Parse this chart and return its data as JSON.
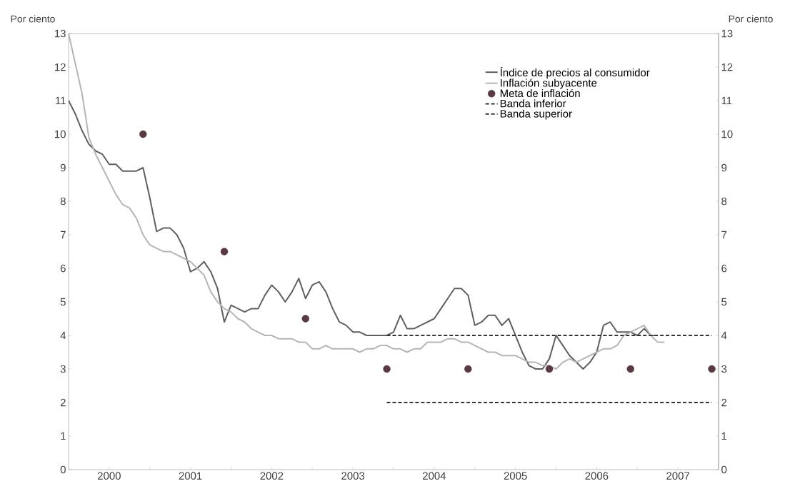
{
  "chart_data": {
    "type": "line",
    "ylabel": "Por ciento",
    "y2label": "Por ciento",
    "xlim": [
      "2000-01",
      "2008-01"
    ],
    "xticks": [
      {
        "value": "2000-07",
        "label": "2000"
      },
      {
        "value": "2001-01",
        "label": null
      },
      {
        "value": "2001-07",
        "label": "2001"
      },
      {
        "value": "2002-01",
        "label": null
      },
      {
        "value": "2002-07",
        "label": "2002"
      },
      {
        "value": "2003-01",
        "label": null
      },
      {
        "value": "2003-07",
        "label": "2003"
      },
      {
        "value": "2004-01",
        "label": null
      },
      {
        "value": "2004-07",
        "label": "2004"
      },
      {
        "value": "2005-01",
        "label": null
      },
      {
        "value": "2005-07",
        "label": "2005"
      },
      {
        "value": "2006-01",
        "label": null
      },
      {
        "value": "2006-07",
        "label": "2006"
      },
      {
        "value": "2007-01",
        "label": null
      },
      {
        "value": "2007-07",
        "label": "2007"
      }
    ],
    "ylim": [
      0,
      13
    ],
    "yticks": [
      0,
      1,
      2,
      3,
      4,
      5,
      6,
      7,
      8,
      9,
      10,
      11,
      12,
      13
    ],
    "y2lim": [
      0,
      13
    ],
    "y2ticks": [
      0,
      1,
      2,
      3,
      4,
      5,
      6,
      7,
      8,
      9,
      10,
      11,
      12,
      13
    ],
    "grid": false,
    "legend": "top right",
    "series": [
      {
        "name": "Índice de precios al consumidor",
        "color": "#5f5f5f",
        "line_style": "solid",
        "marker": "none",
        "x": [
          "2000-01",
          "2000-02",
          "2000-03",
          "2000-04",
          "2000-05",
          "2000-06",
          "2000-07",
          "2000-08",
          "2000-09",
          "2000-10",
          "2000-11",
          "2000-12",
          "2001-01",
          "2001-02",
          "2001-03",
          "2001-04",
          "2001-05",
          "2001-06",
          "2001-07",
          "2001-08",
          "2001-09",
          "2001-10",
          "2001-11",
          "2001-12",
          "2002-01",
          "2002-02",
          "2002-03",
          "2002-04",
          "2002-05",
          "2002-06",
          "2002-07",
          "2002-08",
          "2002-09",
          "2002-10",
          "2002-11",
          "2002-12",
          "2003-01",
          "2003-02",
          "2003-03",
          "2003-04",
          "2003-05",
          "2003-06",
          "2003-07",
          "2003-08",
          "2003-09",
          "2003-10",
          "2003-11",
          "2003-12",
          "2004-01",
          "2004-02",
          "2004-03",
          "2004-04",
          "2004-05",
          "2004-06",
          "2004-07",
          "2004-08",
          "2004-09",
          "2004-10",
          "2004-11",
          "2004-12",
          "2005-01",
          "2005-02",
          "2005-03",
          "2005-04",
          "2005-05",
          "2005-06",
          "2005-07",
          "2005-08",
          "2005-09",
          "2005-10",
          "2005-11",
          "2005-12",
          "2006-01",
          "2006-02",
          "2006-03",
          "2006-04",
          "2006-05",
          "2006-06",
          "2006-07",
          "2006-08",
          "2006-09",
          "2006-10",
          "2006-11",
          "2006-12",
          "2007-01",
          "2007-02",
          "2007-03",
          "2007-04"
        ],
        "values": [
          11.0,
          10.6,
          10.1,
          9.7,
          9.5,
          9.4,
          9.1,
          9.1,
          8.9,
          8.9,
          8.9,
          9.0,
          8.1,
          7.1,
          7.2,
          7.2,
          7.0,
          6.6,
          5.9,
          6.0,
          6.2,
          5.9,
          5.4,
          4.4,
          4.9,
          4.8,
          4.7,
          4.8,
          4.8,
          5.2,
          5.5,
          5.3,
          5.0,
          5.3,
          5.7,
          5.1,
          5.5,
          5.6,
          5.3,
          4.8,
          4.4,
          4.3,
          4.1,
          4.1,
          4.0,
          4.0,
          4.0,
          4.0,
          4.1,
          4.6,
          4.2,
          4.2,
          4.3,
          4.4,
          4.5,
          4.8,
          5.1,
          5.4,
          5.4,
          5.2,
          4.3,
          4.4,
          4.6,
          4.6,
          4.3,
          4.5,
          4.0,
          3.5,
          3.1,
          3.0,
          3.0,
          3.3,
          4.0,
          3.7,
          3.4,
          3.2,
          3.0,
          3.2,
          3.5,
          4.3,
          4.4,
          4.1,
          4.1,
          4.1,
          4.0,
          4.2,
          4.0,
          4.0
        ]
      },
      {
        "name": "Inflación subyacente",
        "color": "#b5b5b5",
        "line_style": "solid",
        "marker": "none",
        "x": [
          "2000-01",
          "2000-02",
          "2000-03",
          "2000-04",
          "2000-05",
          "2000-06",
          "2000-07",
          "2000-08",
          "2000-09",
          "2000-10",
          "2000-11",
          "2000-12",
          "2001-01",
          "2001-02",
          "2001-03",
          "2001-04",
          "2001-05",
          "2001-06",
          "2001-07",
          "2001-08",
          "2001-09",
          "2001-10",
          "2001-11",
          "2001-12",
          "2002-01",
          "2002-02",
          "2002-03",
          "2002-04",
          "2002-05",
          "2002-06",
          "2002-07",
          "2002-08",
          "2002-09",
          "2002-10",
          "2002-11",
          "2002-12",
          "2003-01",
          "2003-02",
          "2003-03",
          "2003-04",
          "2003-05",
          "2003-06",
          "2003-07",
          "2003-08",
          "2003-09",
          "2003-10",
          "2003-11",
          "2003-12",
          "2004-01",
          "2004-02",
          "2004-03",
          "2004-04",
          "2004-05",
          "2004-06",
          "2004-07",
          "2004-08",
          "2004-09",
          "2004-10",
          "2004-11",
          "2004-12",
          "2005-01",
          "2005-02",
          "2005-03",
          "2005-04",
          "2005-05",
          "2005-06",
          "2005-07",
          "2005-08",
          "2005-09",
          "2005-10",
          "2005-11",
          "2005-12",
          "2006-01",
          "2006-02",
          "2006-03",
          "2006-04",
          "2006-05",
          "2006-06",
          "2006-07",
          "2006-08",
          "2006-09",
          "2006-10",
          "2006-11",
          "2006-12",
          "2007-01",
          "2007-02",
          "2007-03",
          "2007-04",
          "2007-05"
        ],
        "values": [
          13.0,
          12.1,
          11.2,
          9.9,
          9.4,
          9.0,
          8.6,
          8.2,
          7.9,
          7.8,
          7.5,
          7.0,
          6.7,
          6.6,
          6.5,
          6.5,
          6.4,
          6.3,
          6.2,
          6.0,
          5.8,
          5.3,
          5.0,
          4.8,
          4.7,
          4.5,
          4.4,
          4.2,
          4.1,
          4.0,
          4.0,
          3.9,
          3.9,
          3.9,
          3.8,
          3.8,
          3.6,
          3.6,
          3.7,
          3.6,
          3.6,
          3.6,
          3.6,
          3.5,
          3.6,
          3.6,
          3.7,
          3.7,
          3.6,
          3.6,
          3.5,
          3.6,
          3.6,
          3.8,
          3.8,
          3.8,
          3.9,
          3.9,
          3.8,
          3.8,
          3.7,
          3.6,
          3.5,
          3.5,
          3.4,
          3.4,
          3.4,
          3.3,
          3.2,
          3.2,
          3.1,
          3.1,
          3.0,
          3.2,
          3.3,
          3.2,
          3.3,
          3.4,
          3.5,
          3.6,
          3.6,
          3.7,
          4.0,
          4.1,
          4.2,
          4.3,
          4.0,
          3.8,
          3.8
        ]
      },
      {
        "name": "Meta de inflación",
        "color": "#5a3a40",
        "type": "scatter",
        "marker": "circle",
        "x": [
          "2000-12",
          "2001-12",
          "2002-12",
          "2003-12",
          "2004-12",
          "2005-12",
          "2006-12",
          "2007-12"
        ],
        "values": [
          10,
          6.5,
          4.5,
          3,
          3,
          3,
          3,
          3
        ]
      },
      {
        "name": "Banda inferior",
        "color": "#333333",
        "line_style": "dashed",
        "marker": "none",
        "x": [
          "2003-12",
          "2007-12"
        ],
        "values": [
          2,
          2
        ]
      },
      {
        "name": "Banda superior",
        "color": "#333333",
        "line_style": "dashed",
        "marker": "none",
        "x": [
          "2003-12",
          "2007-12"
        ],
        "values": [
          4,
          4
        ]
      }
    ]
  }
}
